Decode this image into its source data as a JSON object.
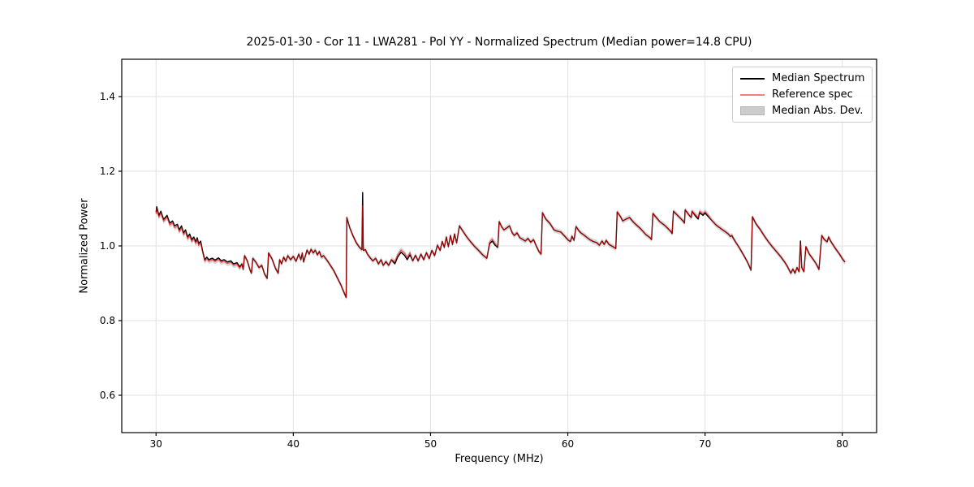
{
  "figure": {
    "title": "2025-01-30 - Cor 11 - LWA281 - Pol YY - Normalized Spectrum (Median power=14.8 CPU)"
  },
  "axes": {
    "xlabel": "Frequency (MHz)",
    "ylabel": "Normalized Power",
    "x_tick_labels": [
      "30",
      "40",
      "50",
      "60",
      "70",
      "80"
    ],
    "y_tick_labels": [
      "0.6",
      "0.8",
      "1.0",
      "1.2",
      "1.4"
    ],
    "frame_color": "#000000",
    "grid_color": "#e2e2e2",
    "tick_label_color": "#000000"
  },
  "legend": {
    "position": "upper right",
    "entries": [
      {
        "label": "Median Spectrum",
        "type": "line",
        "color": "#000000"
      },
      {
        "label": "Reference spec",
        "type": "line",
        "color": "#f87c7c"
      },
      {
        "label": "Median Abs. Dev.",
        "type": "patch",
        "color": "#cccccc",
        "edge": "#b3b3b3"
      }
    ]
  },
  "chart_data": {
    "type": "line",
    "title": "2025-01-30 - Cor 11 - LWA281 - Pol YY - Normalized Spectrum (Median power=14.8 CPU)",
    "xlabel": "Frequency (MHz)",
    "ylabel": "Normalized Power",
    "xlim": [
      27.5,
      82.5
    ],
    "ylim": [
      0.5,
      1.5
    ],
    "x_ticks": [
      30,
      40,
      50,
      60,
      70,
      80
    ],
    "y_ticks": [
      0.6,
      0.8,
      1.0,
      1.2,
      1.4
    ],
    "grid": true,
    "legend_position": "upper right",
    "series": [
      {
        "name": "Median Spectrum",
        "color": "#000000",
        "line_width": 1.4,
        "points": [
          [
            30.0,
            1.09
          ],
          [
            30.05,
            1.105
          ],
          [
            30.2,
            1.082
          ],
          [
            30.35,
            1.093
          ],
          [
            30.55,
            1.071
          ],
          [
            30.8,
            1.082
          ],
          [
            31.0,
            1.061
          ],
          [
            31.2,
            1.067
          ],
          [
            31.35,
            1.054
          ],
          [
            31.55,
            1.058
          ],
          [
            31.7,
            1.043
          ],
          [
            31.85,
            1.054
          ],
          [
            32.0,
            1.035
          ],
          [
            32.15,
            1.043
          ],
          [
            32.3,
            1.024
          ],
          [
            32.45,
            1.032
          ],
          [
            32.6,
            1.017
          ],
          [
            32.75,
            1.024
          ],
          [
            32.9,
            1.011
          ],
          [
            33.0,
            1.022
          ],
          [
            33.1,
            1.006
          ],
          [
            33.25,
            1.013
          ],
          [
            33.4,
            0.985
          ],
          [
            33.55,
            0.963
          ],
          [
            33.7,
            0.97
          ],
          [
            33.85,
            0.963
          ],
          [
            34.1,
            0.967
          ],
          [
            34.3,
            0.962
          ],
          [
            34.55,
            0.968
          ],
          [
            34.75,
            0.96
          ],
          [
            34.95,
            0.963
          ],
          [
            35.2,
            0.957
          ],
          [
            35.45,
            0.96
          ],
          [
            35.65,
            0.952
          ],
          [
            35.9,
            0.955
          ],
          [
            36.1,
            0.944
          ],
          [
            36.25,
            0.952
          ],
          [
            36.35,
            0.937
          ],
          [
            36.45,
            0.974
          ],
          [
            36.65,
            0.96
          ],
          [
            36.85,
            0.935
          ],
          [
            36.95,
            0.927
          ],
          [
            37.05,
            0.967
          ],
          [
            37.3,
            0.955
          ],
          [
            37.5,
            0.942
          ],
          [
            37.7,
            0.948
          ],
          [
            37.9,
            0.925
          ],
          [
            38.1,
            0.913
          ],
          [
            38.2,
            0.981
          ],
          [
            38.45,
            0.965
          ],
          [
            38.7,
            0.94
          ],
          [
            38.9,
            0.927
          ],
          [
            39.0,
            0.963
          ],
          [
            39.15,
            0.952
          ],
          [
            39.3,
            0.97
          ],
          [
            39.45,
            0.959
          ],
          [
            39.6,
            0.974
          ],
          [
            39.8,
            0.963
          ],
          [
            40.0,
            0.972
          ],
          [
            40.2,
            0.959
          ],
          [
            40.4,
            0.978
          ],
          [
            40.55,
            0.963
          ],
          [
            40.65,
            0.981
          ],
          [
            40.75,
            0.957
          ],
          [
            41.0,
            0.989
          ],
          [
            41.15,
            0.978
          ],
          [
            41.3,
            0.991
          ],
          [
            41.45,
            0.981
          ],
          [
            41.6,
            0.989
          ],
          [
            41.75,
            0.976
          ],
          [
            41.9,
            0.985
          ],
          [
            42.05,
            0.97
          ],
          [
            42.2,
            0.974
          ],
          [
            42.45,
            0.962
          ],
          [
            42.7,
            0.948
          ],
          [
            42.95,
            0.934
          ],
          [
            43.2,
            0.915
          ],
          [
            43.45,
            0.897
          ],
          [
            43.65,
            0.879
          ],
          [
            43.85,
            0.862
          ],
          [
            43.9,
            1.076
          ],
          [
            44.1,
            1.05
          ],
          [
            44.35,
            1.027
          ],
          [
            44.6,
            1.008
          ],
          [
            44.85,
            0.995
          ],
          [
            45.0,
            0.99
          ],
          [
            45.05,
            1.143
          ],
          [
            45.1,
            0.988
          ],
          [
            45.25,
            0.99
          ],
          [
            45.4,
            0.978
          ],
          [
            45.6,
            0.968
          ],
          [
            45.8,
            0.96
          ],
          [
            46.0,
            0.967
          ],
          [
            46.2,
            0.952
          ],
          [
            46.4,
            0.963
          ],
          [
            46.55,
            0.948
          ],
          [
            46.75,
            0.958
          ],
          [
            46.95,
            0.948
          ],
          [
            47.15,
            0.963
          ],
          [
            47.4,
            0.952
          ],
          [
            47.6,
            0.97
          ],
          [
            47.85,
            0.983
          ],
          [
            48.1,
            0.975
          ],
          [
            48.3,
            0.963
          ],
          [
            48.5,
            0.976
          ],
          [
            48.7,
            0.96
          ],
          [
            48.9,
            0.975
          ],
          [
            49.1,
            0.96
          ],
          [
            49.3,
            0.978
          ],
          [
            49.5,
            0.963
          ],
          [
            49.7,
            0.982
          ],
          [
            49.9,
            0.966
          ],
          [
            50.1,
            0.988
          ],
          [
            50.3,
            0.974
          ],
          [
            50.5,
            1.002
          ],
          [
            50.7,
            0.988
          ],
          [
            50.85,
            1.012
          ],
          [
            51.0,
            0.996
          ],
          [
            51.15,
            1.024
          ],
          [
            51.3,
            0.998
          ],
          [
            51.45,
            1.028
          ],
          [
            51.6,
            1.004
          ],
          [
            51.75,
            1.032
          ],
          [
            51.9,
            1.008
          ],
          [
            52.1,
            1.054
          ],
          [
            52.35,
            1.04
          ],
          [
            52.6,
            1.026
          ],
          [
            52.9,
            1.012
          ],
          [
            53.2,
            0.999
          ],
          [
            53.5,
            0.988
          ],
          [
            53.8,
            0.976
          ],
          [
            54.1,
            0.967
          ],
          [
            54.3,
            1.006
          ],
          [
            54.5,
            1.013
          ],
          [
            54.7,
            1.002
          ],
          [
            54.9,
            0.996
          ],
          [
            55.0,
            1.065
          ],
          [
            55.2,
            1.05
          ],
          [
            55.35,
            1.043
          ],
          [
            55.55,
            1.048
          ],
          [
            55.75,
            1.054
          ],
          [
            55.95,
            1.035
          ],
          [
            56.1,
            1.028
          ],
          [
            56.3,
            1.035
          ],
          [
            56.5,
            1.022
          ],
          [
            56.7,
            1.018
          ],
          [
            56.9,
            1.013
          ],
          [
            57.1,
            1.02
          ],
          [
            57.3,
            1.01
          ],
          [
            57.5,
            1.017
          ],
          [
            57.7,
            1.0
          ],
          [
            57.9,
            0.985
          ],
          [
            58.05,
            0.978
          ],
          [
            58.15,
            1.089
          ],
          [
            58.4,
            1.072
          ],
          [
            58.7,
            1.06
          ],
          [
            59.0,
            1.043
          ],
          [
            59.2,
            1.04
          ],
          [
            59.5,
            1.037
          ],
          [
            59.8,
            1.025
          ],
          [
            60.05,
            1.015
          ],
          [
            60.2,
            1.012
          ],
          [
            60.3,
            1.026
          ],
          [
            60.45,
            1.015
          ],
          [
            60.6,
            1.052
          ],
          [
            60.8,
            1.041
          ],
          [
            60.95,
            1.035
          ],
          [
            61.15,
            1.03
          ],
          [
            61.35,
            1.024
          ],
          [
            61.6,
            1.017
          ],
          [
            61.85,
            1.012
          ],
          [
            62.1,
            1.009
          ],
          [
            62.3,
            1.002
          ],
          [
            62.5,
            1.013
          ],
          [
            62.65,
            1.004
          ],
          [
            62.8,
            1.015
          ],
          [
            63.0,
            1.004
          ],
          [
            63.3,
            0.998
          ],
          [
            63.5,
            0.993
          ],
          [
            63.6,
            1.091
          ],
          [
            63.85,
            1.078
          ],
          [
            64.0,
            1.067
          ],
          [
            64.2,
            1.071
          ],
          [
            64.5,
            1.076
          ],
          [
            64.8,
            1.063
          ],
          [
            65.3,
            1.046
          ],
          [
            65.7,
            1.03
          ],
          [
            66.0,
            1.022
          ],
          [
            66.1,
            1.017
          ],
          [
            66.2,
            1.087
          ],
          [
            66.7,
            1.065
          ],
          [
            67.1,
            1.054
          ],
          [
            67.5,
            1.039
          ],
          [
            67.6,
            1.033
          ],
          [
            67.7,
            1.093
          ],
          [
            68.1,
            1.078
          ],
          [
            68.4,
            1.067
          ],
          [
            68.5,
            1.061
          ],
          [
            68.55,
            1.097
          ],
          [
            68.85,
            1.082
          ],
          [
            69.0,
            1.076
          ],
          [
            69.05,
            1.093
          ],
          [
            69.35,
            1.078
          ],
          [
            69.5,
            1.072
          ],
          [
            69.6,
            1.089
          ],
          [
            69.85,
            1.082
          ],
          [
            70.0,
            1.088
          ],
          [
            70.2,
            1.08
          ],
          [
            70.5,
            1.068
          ],
          [
            70.8,
            1.056
          ],
          [
            71.1,
            1.048
          ],
          [
            71.4,
            1.04
          ],
          [
            71.7,
            1.032
          ],
          [
            71.85,
            1.025
          ],
          [
            71.95,
            1.028
          ],
          [
            72.2,
            1.012
          ],
          [
            72.5,
            0.995
          ],
          [
            72.8,
            0.976
          ],
          [
            73.1,
            0.956
          ],
          [
            73.35,
            0.935
          ],
          [
            73.45,
            1.078
          ],
          [
            73.7,
            1.06
          ],
          [
            74.0,
            1.045
          ],
          [
            74.3,
            1.028
          ],
          [
            74.6,
            1.012
          ],
          [
            74.9,
            0.998
          ],
          [
            75.2,
            0.985
          ],
          [
            75.5,
            0.972
          ],
          [
            75.8,
            0.957
          ],
          [
            76.0,
            0.945
          ],
          [
            76.25,
            0.927
          ],
          [
            76.4,
            0.938
          ],
          [
            76.55,
            0.927
          ],
          [
            76.7,
            0.942
          ],
          [
            76.85,
            0.931
          ],
          [
            76.95,
            1.013
          ],
          [
            77.05,
            0.942
          ],
          [
            77.2,
            0.931
          ],
          [
            77.35,
            0.998
          ],
          [
            77.6,
            0.978
          ],
          [
            77.9,
            0.963
          ],
          [
            78.1,
            0.952
          ],
          [
            78.3,
            0.937
          ],
          [
            78.5,
            1.028
          ],
          [
            78.7,
            1.017
          ],
          [
            78.9,
            1.011
          ],
          [
            79.0,
            1.024
          ],
          [
            79.2,
            1.01
          ],
          [
            79.5,
            0.993
          ],
          [
            79.8,
            0.978
          ],
          [
            80.05,
            0.963
          ],
          [
            80.2,
            0.957
          ]
        ]
      },
      {
        "name": "Reference spec",
        "color": "rgba(255,0,0,0.65)",
        "line_width": 1.2,
        "derived_from": "Median Spectrum",
        "note": "Nearly identical to the median spectrum; the 45.05 MHz spike only reaches 1.108 and small offsets occur in a few ranges.",
        "spike_clip": {
          "f": 45.05,
          "value": 1.108
        },
        "deviations": [
          {
            "from": 29.9,
            "to": 33.3,
            "dy": -0.005
          },
          {
            "from": 33.4,
            "to": 36.2,
            "dy": -0.004
          },
          {
            "from": 47.4,
            "to": 48.5,
            "dy": 0.006
          },
          {
            "from": 54.15,
            "to": 54.75,
            "dy": 0.005
          },
          {
            "from": 69.3,
            "to": 70.2,
            "dy": 0.004
          },
          {
            "from": 76.88,
            "to": 77.0,
            "dy": -0.008
          }
        ]
      },
      {
        "name": "Median Abs. Dev.",
        "render": "band",
        "color": "#c4c4c4",
        "opacity": 0.7,
        "halfwidth": 0.007,
        "derived_from": "Median Spectrum"
      }
    ]
  }
}
